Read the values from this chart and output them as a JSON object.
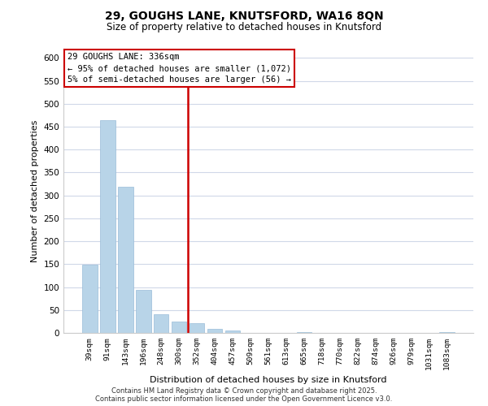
{
  "title": "29, GOUGHS LANE, KNUTSFORD, WA16 8QN",
  "subtitle": "Size of property relative to detached houses in Knutsford",
  "bar_labels": [
    "39sqm",
    "91sqm",
    "143sqm",
    "196sqm",
    "248sqm",
    "300sqm",
    "352sqm",
    "404sqm",
    "457sqm",
    "509sqm",
    "561sqm",
    "613sqm",
    "665sqm",
    "718sqm",
    "770sqm",
    "822sqm",
    "874sqm",
    "926sqm",
    "979sqm",
    "1031sqm",
    "1083sqm"
  ],
  "bar_values": [
    148,
    464,
    319,
    94,
    40,
    24,
    22,
    9,
    5,
    0,
    0,
    0,
    2,
    0,
    0,
    0,
    0,
    0,
    0,
    0,
    1
  ],
  "bar_color": "#b8d4e8",
  "bar_edge_color": "#99bcd8",
  "vline_x": 6,
  "vline_color": "#cc0000",
  "ylabel": "Number of detached properties",
  "xlabel": "Distribution of detached houses by size in Knutsford",
  "ylim": [
    0,
    620
  ],
  "yticks": [
    0,
    50,
    100,
    150,
    200,
    250,
    300,
    350,
    400,
    450,
    500,
    550,
    600
  ],
  "legend_title": "29 GOUGHS LANE: 336sqm",
  "legend_line1": "← 95% of detached houses are smaller (1,072)",
  "legend_line2": "5% of semi-detached houses are larger (56) →",
  "legend_box_color": "#ffffff",
  "legend_box_edge": "#cc0000",
  "footer1": "Contains HM Land Registry data © Crown copyright and database right 2025.",
  "footer2": "Contains public sector information licensed under the Open Government Licence v3.0.",
  "bg_color": "#ffffff",
  "grid_color": "#d0d8e8"
}
